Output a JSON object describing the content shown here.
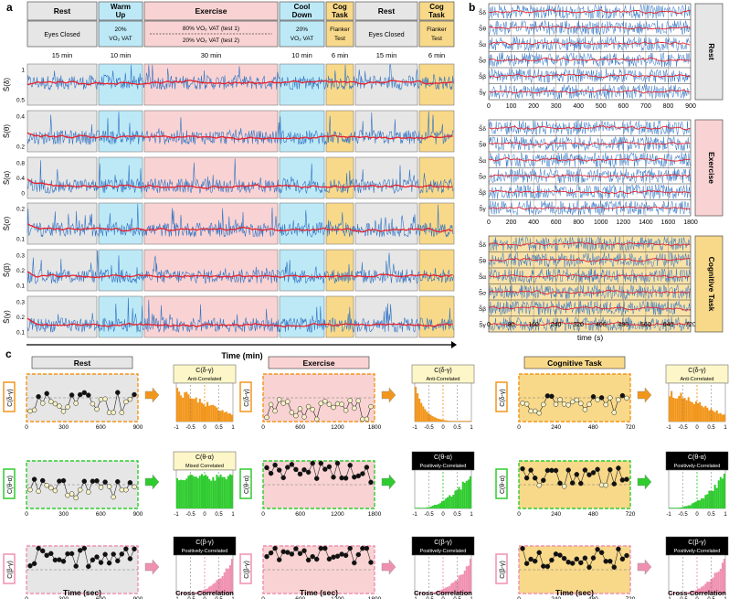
{
  "panel_labels": {
    "a": "a",
    "b": "b",
    "c": "c"
  },
  "colors": {
    "rest": "#e6e6e6",
    "warm": "#bde9f7",
    "exercise": "#f9d3d3",
    "cooldown": "#bde9f7",
    "cog": "#f8d98a",
    "signal_raw": "#2f73c4",
    "signal_smooth": "#e8202a",
    "delta_gamma": "#f2961b",
    "theta_alpha": "#2ecc2e",
    "beta_gamma": "#f090b0"
  },
  "panel_a": {
    "phases": [
      {
        "name": "Rest",
        "sub": "Eyes Closed",
        "dur": "15 min",
        "color": "rest"
      },
      {
        "name": "Warm Up",
        "sub": "20% VO₂ VAT",
        "dur": "10 min",
        "color": "warm"
      },
      {
        "name": "Exercise",
        "sub": "80% VO₂ VAT (test 1)",
        "sub2": "20% VO₂ VAT (test 2)",
        "dur": "30 min",
        "color": "exercise"
      },
      {
        "name": "Cool Down",
        "sub": "20% VO₂ VAT",
        "dur": "10 min",
        "color": "cooldown"
      },
      {
        "name": "Cog Task",
        "sub": "Flanker Test",
        "dur": "6 min",
        "color": "cog"
      },
      {
        "name": "Rest",
        "sub": "Eyes Closed",
        "dur": "15 min",
        "color": "rest"
      },
      {
        "name": "Cog Task",
        "sub": "Flanker Test",
        "dur": "6 min",
        "color": "cog"
      }
    ],
    "xlabel": "Time (min)",
    "rows": [
      {
        "label": "S̄(δ)",
        "ticks": [
          "1",
          "0.5"
        ]
      },
      {
        "label": "S̄(θ)",
        "ticks": [
          "0.4",
          "0.2"
        ]
      },
      {
        "label": "S̄(α)",
        "ticks": [
          "0.8",
          "0.4",
          "0"
        ]
      },
      {
        "label": "S̄(σ)",
        "ticks": [
          "0.2",
          "0.1"
        ]
      },
      {
        "label": "S̄(β)",
        "ticks": [
          "0.3",
          "0.2",
          "0.1"
        ]
      },
      {
        "label": "S̄(γ)",
        "ticks": [
          "0.3",
          "0.2",
          "0.1"
        ]
      }
    ]
  },
  "panel_b": {
    "groups": [
      {
        "name": "Rest",
        "color": "rest",
        "ticks": [
          "0",
          "100",
          "200",
          "300",
          "400",
          "500",
          "600",
          "700",
          "800",
          "900"
        ]
      },
      {
        "name": "Exercise",
        "color": "exercise",
        "ticks": [
          "0",
          "200",
          "400",
          "600",
          "800",
          "1000",
          "1200",
          "1400",
          "1600",
          "1800"
        ]
      },
      {
        "name": "Cognitive Task",
        "color": "cog",
        "ticks": [
          "0",
          "80",
          "160",
          "240",
          "320",
          "400",
          "480",
          "560",
          "640",
          "720"
        ]
      }
    ],
    "row_labels": [
      "S̃δ",
      "S̃θ",
      "S̃α",
      "S̃σ",
      "S̃β",
      "S̃γ"
    ],
    "xlabel": "time (s)"
  },
  "panel_c": {
    "columns": [
      {
        "title": "Rest",
        "color": "rest",
        "ticks": [
          "0",
          "300",
          "600",
          "900"
        ]
      },
      {
        "title": "Exercise",
        "color": "exercise",
        "ticks": [
          "0",
          "600",
          "1200",
          "1800"
        ]
      },
      {
        "title": "Cognitive Task",
        "color": "cog",
        "ticks": [
          "0",
          "240",
          "480",
          "720"
        ]
      }
    ],
    "rows": [
      {
        "label": "C(δ-γ)",
        "color": "delta_gamma",
        "badge": [
          "C(δ-γ)",
          "C(δ-γ)",
          "C(δ-γ)"
        ],
        "kind": [
          "Anti-Correlated",
          "Anti-Correlated",
          "Anti-Correlated"
        ],
        "dark": [
          false,
          false,
          false
        ]
      },
      {
        "label": "C(θ-α)",
        "color": "theta_alpha",
        "badge": [
          "C(θ-α)",
          "C(θ-α)",
          "C(θ-α)"
        ],
        "kind": [
          "Mixed Correlated",
          "Positively-Correlated",
          "Positively-Correlated"
        ],
        "dark": [
          false,
          true,
          true
        ]
      },
      {
        "label": "C(β-γ)",
        "color": "beta_gamma",
        "badge": [
          "C(β-γ)",
          "C(β-γ)",
          "C(β-γ)"
        ],
        "kind": [
          "Positively-Correlated",
          "Positively-Correlated",
          "Positively-Correlated"
        ],
        "dark": [
          true,
          true,
          true
        ]
      }
    ],
    "hist_ticks": [
      "-1",
      "-0.5",
      "0",
      "0.5",
      "1"
    ],
    "xlabel_time": "Time (sec)",
    "xlabel_cc": "Cross-Correlation"
  }
}
